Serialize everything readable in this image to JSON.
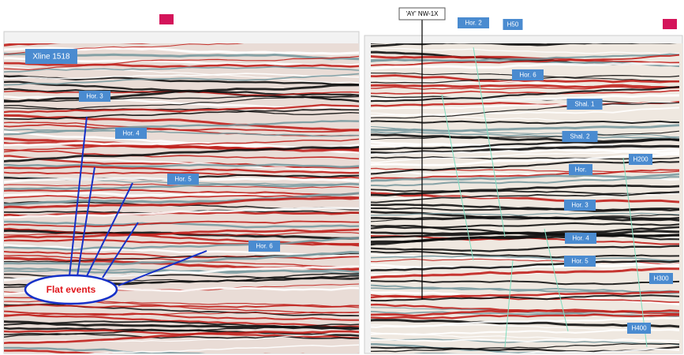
{
  "left_panel": {
    "title": "Xline 1518",
    "labels": [
      "Hor. 3",
      "Hor. 4",
      "Hor. 5",
      "Hor. 6"
    ],
    "callout": "Flat events"
  },
  "right_panel": {
    "well": "'AY' NW-1X",
    "labels": [
      "Hor. 2",
      "H50",
      "Hor. 6",
      "Shal. 1",
      "Shal. 2",
      "H200",
      "Hor.",
      "Hor. 3",
      "Hor. 4",
      "Hor. 5",
      "H300",
      "H400"
    ]
  }
}
